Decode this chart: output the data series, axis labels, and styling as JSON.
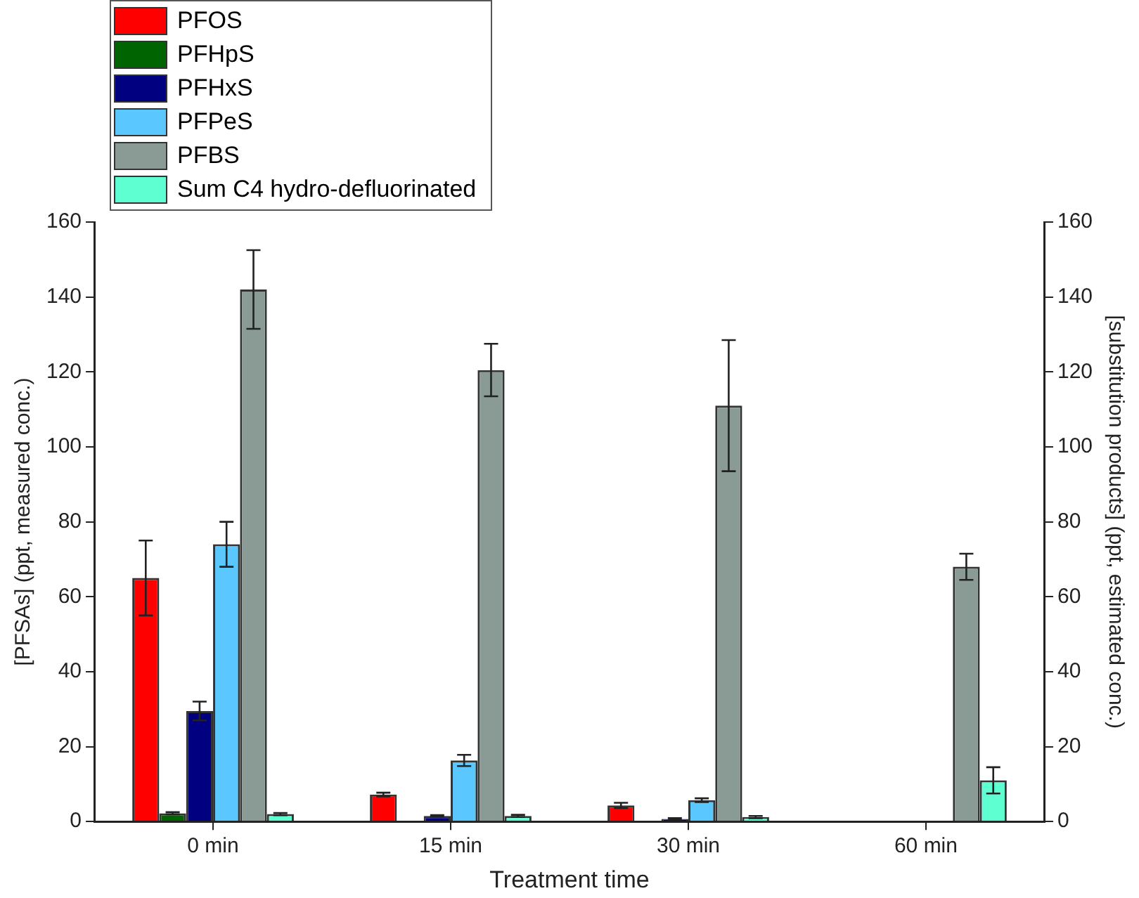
{
  "chart_data": {
    "type": "bar",
    "xlabel": "Treatment time",
    "ylabel": "[PFSAs] (ppt, measured conc.)",
    "y2label": "[substitution products] (ppt, estimated conc.)",
    "categories": [
      "0 min",
      "15 min",
      "30 min",
      "60 min"
    ],
    "series": [
      {
        "name": "PFOS",
        "color": "#ff0000",
        "values": [
          65,
          7.2,
          4.3,
          null
        ],
        "errors": [
          10,
          0.5,
          0.7,
          null
        ]
      },
      {
        "name": "PFHpS",
        "color": "#006400",
        "values": [
          2.2,
          null,
          null,
          null
        ],
        "errors": [
          0.3,
          null,
          null,
          null
        ]
      },
      {
        "name": "PFHxS",
        "color": "#000080",
        "values": [
          29.5,
          1.5,
          0.7,
          null
        ],
        "errors": [
          2.5,
          0.2,
          0.2,
          null
        ]
      },
      {
        "name": "PFPeS",
        "color": "#5ac8ff",
        "values": [
          74,
          16.3,
          5.7,
          null
        ],
        "errors": [
          6,
          1.5,
          0.5,
          null
        ]
      },
      {
        "name": "PFBS",
        "color": "#8a9a94",
        "values": [
          142,
          120.5,
          111,
          68
        ],
        "errors": [
          10.5,
          7,
          17.5,
          3.5
        ]
      },
      {
        "name": "Sum C4 hydro-defluorinated",
        "color": "#5effd0",
        "axis": "y2",
        "values": [
          2,
          1.5,
          1.2,
          11
        ],
        "errors": [
          0.3,
          0.3,
          0.3,
          3.5
        ]
      }
    ],
    "ylim": [
      0,
      160
    ],
    "yticks": [
      0,
      20,
      40,
      60,
      80,
      100,
      120,
      140,
      160
    ],
    "y2lim": [
      0,
      160
    ],
    "y2ticks": [
      0,
      20,
      40,
      60,
      80,
      100,
      120,
      140,
      160
    ],
    "grid": false,
    "legend": "top left"
  }
}
